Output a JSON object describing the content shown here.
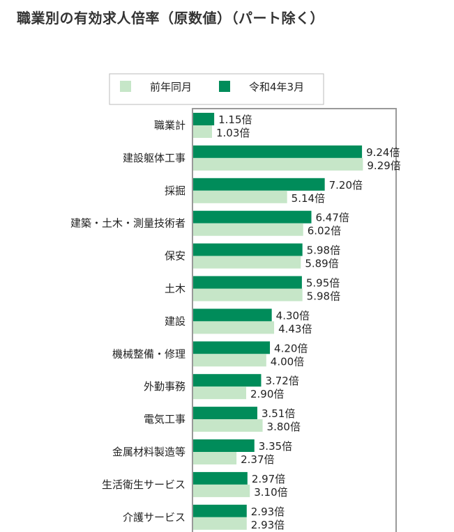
{
  "page": {
    "title": "職業別の有効求人倍率（原数値）（パート除く）"
  },
  "colors": {
    "previous": "#c6e6c8",
    "current": "#008c5a",
    "axis": "#999999",
    "legend_border": "#bbbbbb"
  },
  "chart_data": {
    "type": "bar",
    "orientation": "horizontal",
    "title": "職業別の有効求人倍率（原数値）（パート除く）",
    "legend_position": "top",
    "unit": "倍",
    "xlim": [
      0,
      10
    ],
    "grid": false,
    "categories": [
      "職業計",
      "建設躯体工事",
      "採掘",
      "建築・土木・測量技術者",
      "保安",
      "土木",
      "建設",
      "機械整備・修理",
      "外勤事務",
      "電気工事",
      "金属材料製造等",
      "生活衛生サービス",
      "介護サービス"
    ],
    "series": [
      {
        "name": "令和4年3月",
        "color_key": "current",
        "values": [
          1.15,
          9.24,
          7.2,
          6.47,
          5.98,
          5.95,
          4.3,
          4.2,
          3.72,
          3.51,
          3.35,
          2.97,
          2.93
        ],
        "labels": [
          "1.15倍",
          "9.24倍",
          "7.20倍",
          "6.47倍",
          "5.98倍",
          "5.95倍",
          "4.30倍",
          "4.20倍",
          "3.72倍",
          "3.51倍",
          "3.35倍",
          "2.97倍",
          "2.93倍"
        ]
      },
      {
        "name": "前年同月",
        "color_key": "previous",
        "values": [
          1.03,
          9.29,
          5.14,
          6.02,
          5.89,
          5.98,
          4.43,
          4.0,
          2.9,
          3.8,
          2.37,
          3.1,
          2.93
        ],
        "labels": [
          "1.03倍",
          "9.29倍",
          "5.14倍",
          "6.02倍",
          "5.89倍",
          "5.98倍",
          "4.43倍",
          "4.00倍",
          "2.90倍",
          "3.80倍",
          "2.37倍",
          "3.10倍",
          "2.93倍"
        ]
      }
    ],
    "legend": [
      {
        "label": "前年同月",
        "color_key": "previous"
      },
      {
        "label": "令和4年3月",
        "color_key": "current"
      }
    ]
  }
}
